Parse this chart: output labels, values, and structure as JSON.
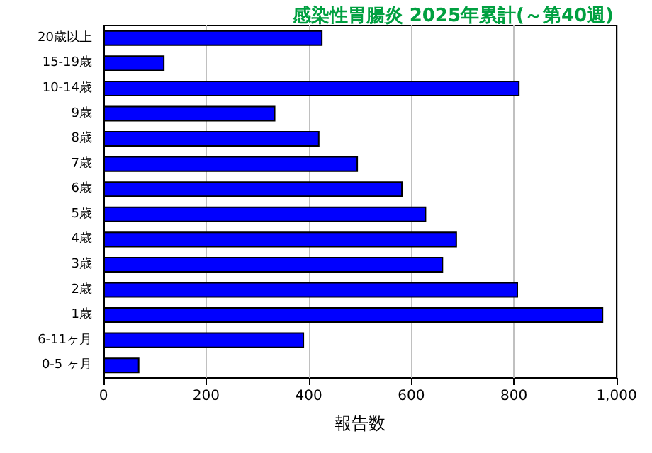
{
  "chart_data": {
    "type": "bar",
    "orientation": "horizontal",
    "title": "感染性胃腸炎 2025年累計(～第40週)",
    "xlabel": "報告数",
    "categories": [
      "20歳以上",
      "15-19歳",
      "10-14歳",
      "9歳",
      "8歳",
      "7歳",
      "6歳",
      "5歳",
      "4歳",
      "3歳",
      "2歳",
      "1歳",
      "6-11ヶ月",
      "0-5 ヶ月"
    ],
    "values": [
      427,
      119,
      811,
      335,
      421,
      496,
      583,
      629,
      689,
      662,
      808,
      974,
      391,
      70
    ],
    "color": "#0000ff",
    "xlim": [
      0,
      1000
    ],
    "xticks": [
      0,
      200,
      400,
      600,
      800,
      {
        "value": 1000,
        "label": "1,000"
      }
    ],
    "grid": "x"
  }
}
